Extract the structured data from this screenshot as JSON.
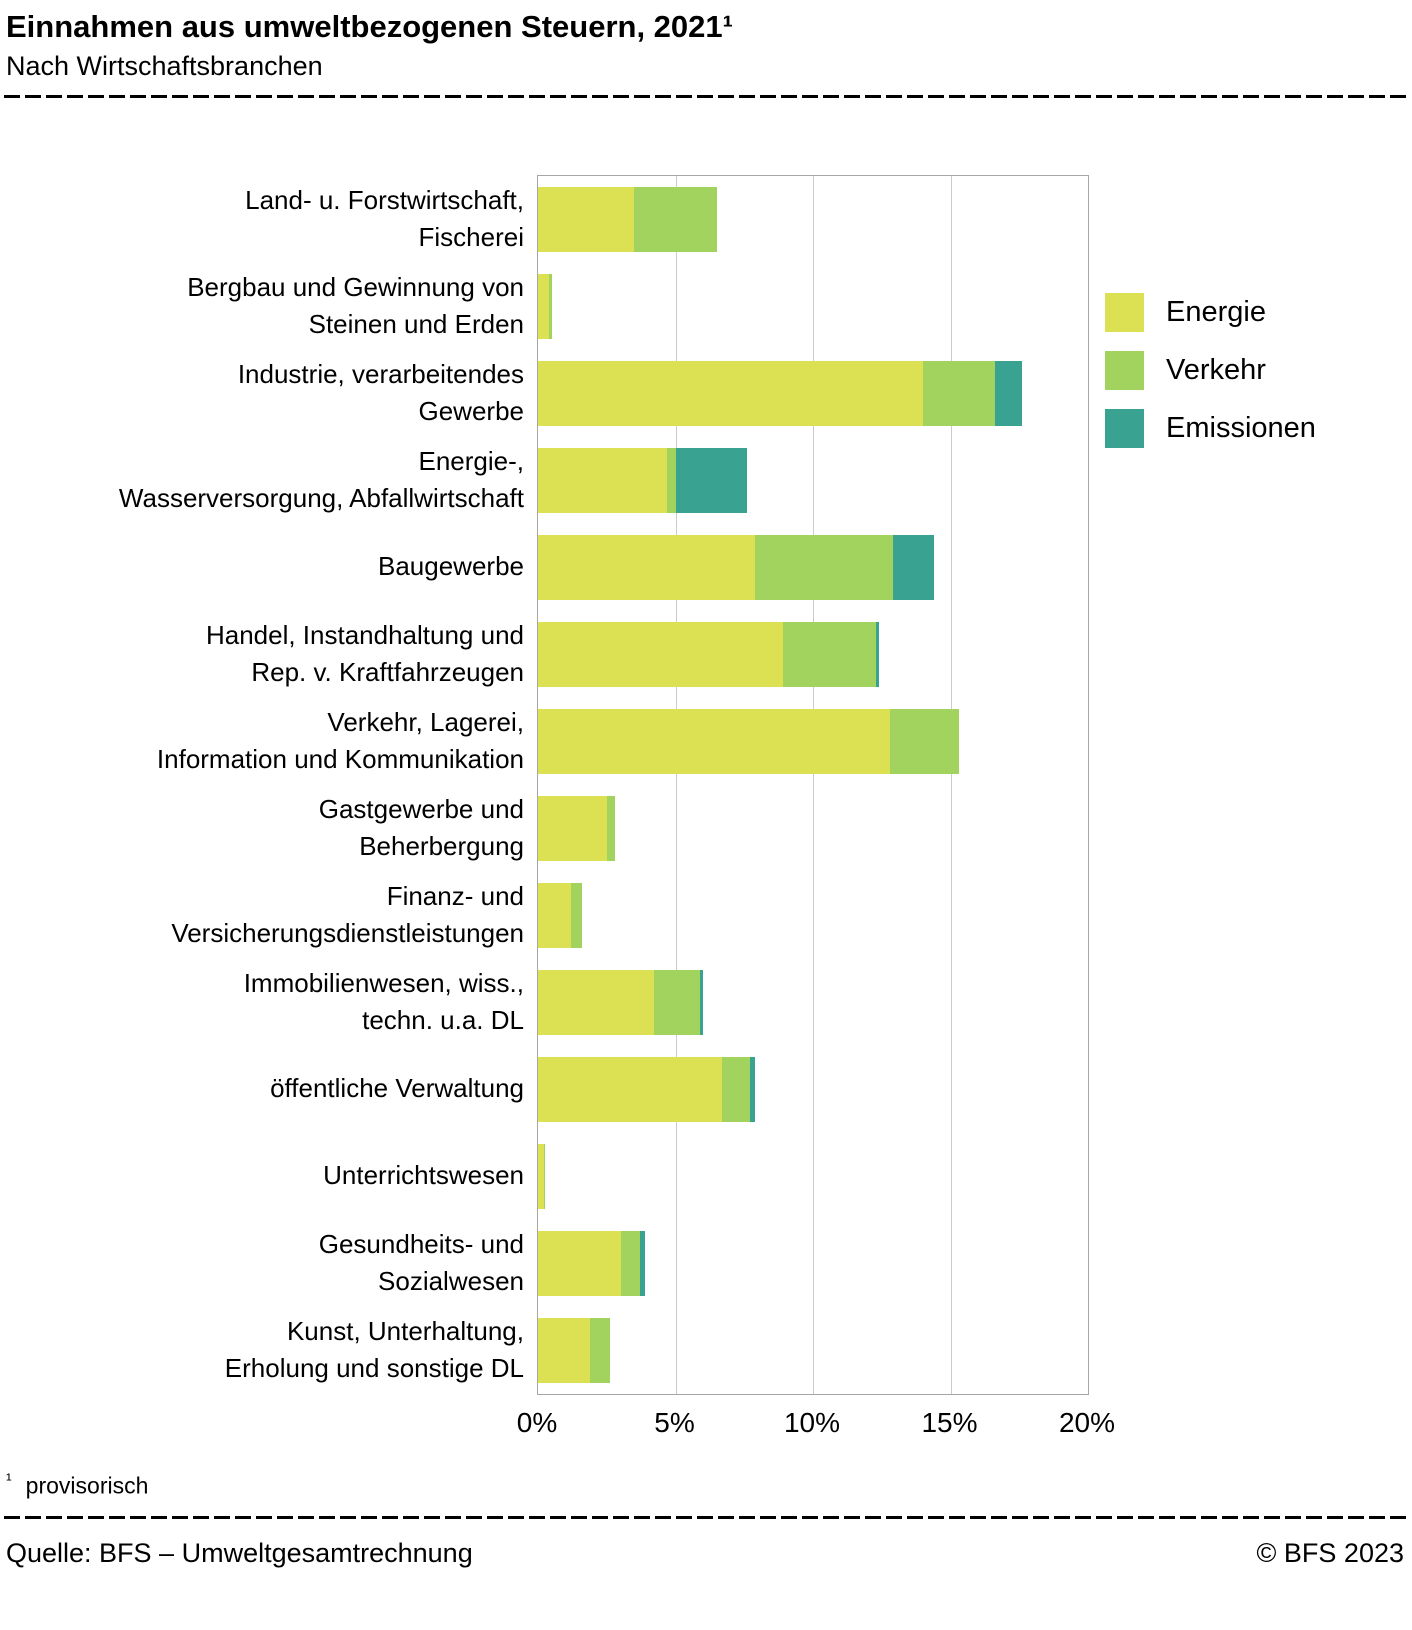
{
  "header": {
    "title": "Einnahmen aus umweltbezogenen Steuern, 2021¹",
    "subtitle": "Nach Wirtschaftsbranchen"
  },
  "footnote": {
    "marker": "¹",
    "text": "provisorisch"
  },
  "footer": {
    "source": "Quelle: BFS – Umweltgesamtrechnung",
    "copyright": "© BFS 2023"
  },
  "chart_data": {
    "type": "bar",
    "orientation": "horizontal",
    "stacked": true,
    "title": "Einnahmen aus umweltbezogenen Steuern, 2021¹",
    "subtitle": "Nach Wirtschaftsbranchen",
    "xlabel": "",
    "ylabel": "",
    "xlim": [
      0,
      20
    ],
    "xtick_values": [
      0,
      5,
      10,
      15,
      20
    ],
    "xtick_labels": [
      "0%",
      "5%",
      "10%",
      "15%",
      "20%"
    ],
    "grid": true,
    "legend_position": "right",
    "categories": [
      "Land- u. Forstwirtschaft, Fischerei",
      "Bergbau und Gewinnung von Steinen und Erden",
      "Industrie, verarbeitendes Gewerbe",
      "Energie-, Wasserversorgung, Abfallwirtschaft",
      "Baugewerbe",
      "Handel, Instandhaltung und Rep. v. Kraftfahrzeugen",
      "Verkehr, Lagerei, Information und Kommunikation",
      "Gastgewerbe und Beherbergung",
      "Finanz- und Versicherungsdienstleistungen",
      "Immobilienwesen, wiss., techn. u.a. DL",
      "öffentliche Verwaltung",
      "Unterrichtswesen",
      "Gesundheits- und Sozialwesen",
      "Kunst, Unterhaltung, Erholung und sonstige DL"
    ],
    "category_lines": [
      [
        "Land- u. Forstwirtschaft,",
        "Fischerei"
      ],
      [
        "Bergbau und Gewinnung von",
        "Steinen und Erden"
      ],
      [
        "Industrie, verarbeitendes",
        "Gewerbe"
      ],
      [
        "Energie-,",
        "Wasserversorgung, Abfallwirtschaft"
      ],
      [
        "Baugewerbe"
      ],
      [
        "Handel, Instandhaltung und",
        "Rep. v. Kraftfahrzeugen"
      ],
      [
        "Verkehr, Lagerei,",
        "Information und Kommunikation"
      ],
      [
        "Gastgewerbe und",
        "Beherbergung"
      ],
      [
        "Finanz- und",
        "Versicherungsdienstleistungen"
      ],
      [
        "Immobilienwesen, wiss.,",
        "techn. u.a. DL"
      ],
      [
        "öffentliche Verwaltung"
      ],
      [
        "Unterrichtswesen"
      ],
      [
        "Gesundheits- und",
        "Sozialwesen"
      ],
      [
        "Kunst, Unterhaltung,",
        "Erholung und sonstige DL"
      ]
    ],
    "series": [
      {
        "name": "Energie",
        "color": "#dce153",
        "values": [
          3.5,
          0.4,
          14.0,
          4.7,
          7.9,
          8.9,
          12.8,
          2.5,
          1.2,
          4.2,
          6.7,
          0.2,
          3.0,
          1.9
        ]
      },
      {
        "name": "Verkehr",
        "color": "#a3d35f",
        "values": [
          3.0,
          0.1,
          2.6,
          0.3,
          5.0,
          3.4,
          2.5,
          0.3,
          0.4,
          1.7,
          1.0,
          0.05,
          0.7,
          0.7
        ]
      },
      {
        "name": "Emissionen",
        "color": "#3aa290",
        "values": [
          0,
          0,
          1.0,
          2.6,
          1.5,
          0.1,
          0,
          0,
          0,
          0.1,
          0.2,
          0,
          0.2,
          0
        ]
      }
    ]
  }
}
